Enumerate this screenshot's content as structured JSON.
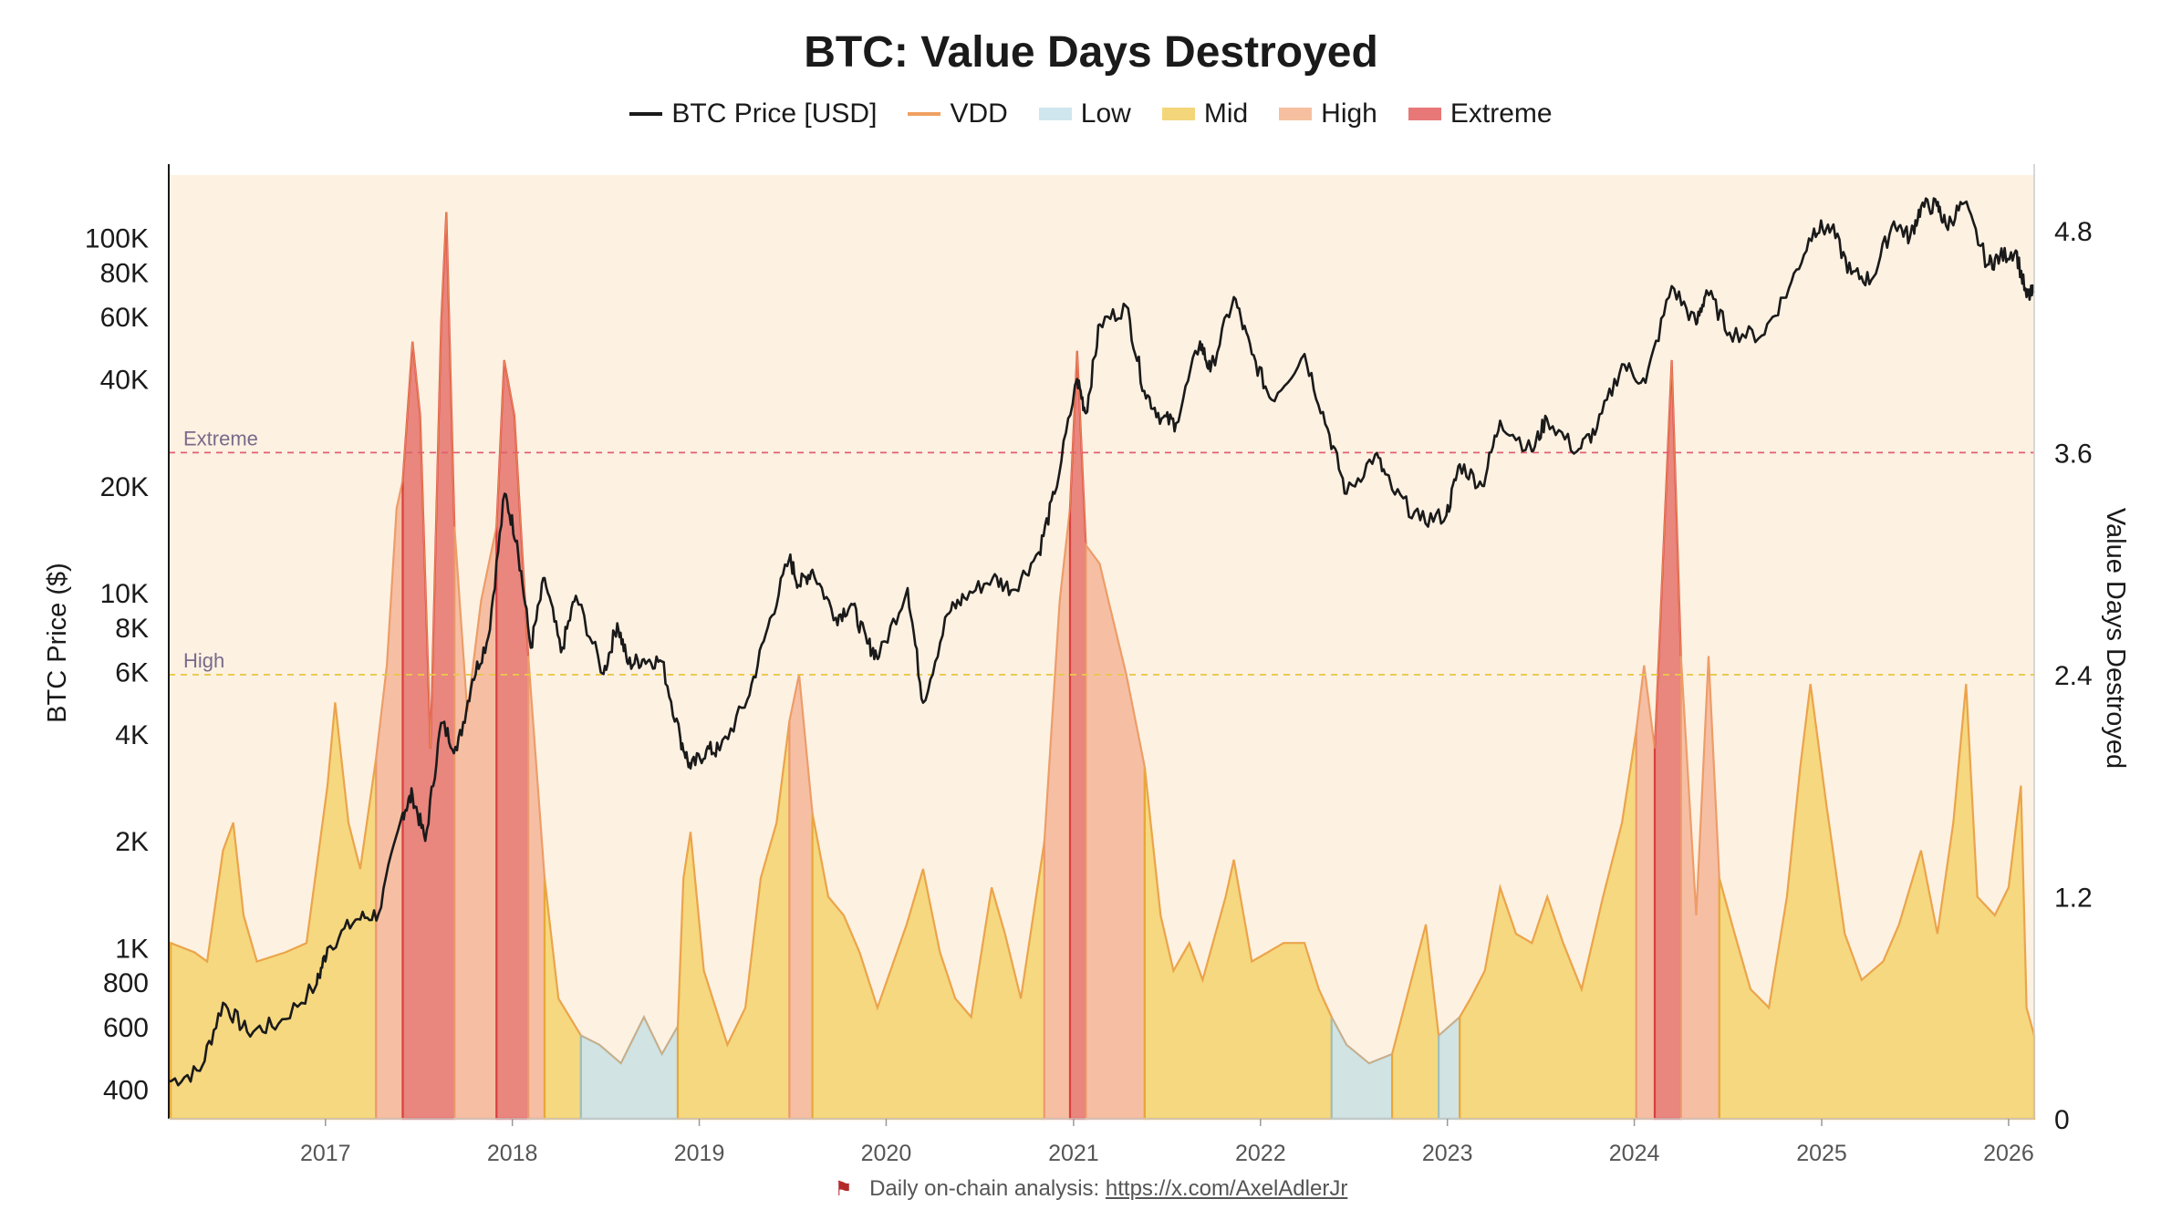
{
  "chart_data": {
    "type": "area",
    "title": "BTC: Value Days Destroyed",
    "ylabel_left": "BTC Price ($)",
    "ylabel_right": "Value Days Destroyed",
    "x_ticks": [
      "2017",
      "2018",
      "2019",
      "2020",
      "2021",
      "2022",
      "2023",
      "2024",
      "2025",
      "2026"
    ],
    "y_left_ticks": [
      "400",
      "600",
      "800",
      "1K",
      "2K",
      "4K",
      "6K",
      "8K",
      "10K",
      "20K",
      "40K",
      "60K",
      "80K",
      "100K"
    ],
    "y_left_values": [
      400,
      600,
      800,
      1000,
      2000,
      4000,
      6000,
      8000,
      10000,
      20000,
      40000,
      60000,
      80000,
      100000
    ],
    "y_left_scale": "log",
    "y_left_range": [
      330,
      150000
    ],
    "y_right_ticks": [
      "0",
      "1.2",
      "2.4",
      "3.6",
      "4.8"
    ],
    "y_right_values": [
      0,
      1.2,
      2.4,
      3.6,
      4.8
    ],
    "y_right_range": [
      0,
      5.1
    ],
    "x_range": [
      "2016-03-01",
      "2026-02-20"
    ],
    "grid": false,
    "legend_position": "top-center",
    "thresholds": [
      {
        "label": "Extreme",
        "value": 3.6,
        "color": "#e06070"
      },
      {
        "label": "High",
        "value": 2.4,
        "color": "#e8c84a"
      }
    ],
    "legend": [
      {
        "name": "BTC Price [USD]",
        "kind": "line",
        "color": "#1a1a1a"
      },
      {
        "name": "VDD",
        "kind": "line",
        "color": "#f0a060"
      },
      {
        "name": "Low",
        "kind": "area",
        "color": "#cfe6ee"
      },
      {
        "name": "Mid",
        "kind": "area",
        "color": "#f4d67a"
      },
      {
        "name": "High",
        "kind": "area",
        "color": "#f6c0a0"
      },
      {
        "name": "Extreme",
        "kind": "area",
        "color": "#e87878"
      }
    ],
    "zone_colors": {
      "low": "#cfe2e2",
      "mid": "#f4d67a",
      "high": "#f5bca0",
      "extreme": "#e88078"
    },
    "zone_edges": {
      "low": "#9fc0bc",
      "mid": "#e8a838",
      "high": "#ec9a70",
      "extreme": "#d84040"
    },
    "background": "#fdf1e2",
    "series": [
      {
        "name": "BTC Price [USD]",
        "points": [
          [
            "2016-03-01",
            420
          ],
          [
            "2016-05-01",
            450
          ],
          [
            "2016-06-15",
            700
          ],
          [
            "2016-08-01",
            580
          ],
          [
            "2016-10-01",
            610
          ],
          [
            "2016-12-15",
            790
          ],
          [
            "2017-01-05",
            1000
          ],
          [
            "2017-03-01",
            1200
          ],
          [
            "2017-04-15",
            1250
          ],
          [
            "2017-06-01",
            2400
          ],
          [
            "2017-06-20",
            2700
          ],
          [
            "2017-07-15",
            2000
          ],
          [
            "2017-08-15",
            4300
          ],
          [
            "2017-09-15",
            3600
          ],
          [
            "2017-10-15",
            5700
          ],
          [
            "2017-11-15",
            7500
          ],
          [
            "2017-12-17",
            19000
          ],
          [
            "2018-01-10",
            14000
          ],
          [
            "2018-02-06",
            7000
          ],
          [
            "2018-03-05",
            11000
          ],
          [
            "2018-04-06",
            6800
          ],
          [
            "2018-05-05",
            9800
          ],
          [
            "2018-06-28",
            5900
          ],
          [
            "2018-07-25",
            8200
          ],
          [
            "2018-08-15",
            6300
          ],
          [
            "2018-09-15",
            6500
          ],
          [
            "2018-10-20",
            6400
          ],
          [
            "2018-11-25",
            3900
          ],
          [
            "2018-12-15",
            3200
          ],
          [
            "2019-01-15",
            3600
          ],
          [
            "2019-02-10",
            3600
          ],
          [
            "2019-04-05",
            5000
          ],
          [
            "2019-05-15",
            8000
          ],
          [
            "2019-06-26",
            12500
          ],
          [
            "2019-07-15",
            10500
          ],
          [
            "2019-08-10",
            11600
          ],
          [
            "2019-09-25",
            8500
          ],
          [
            "2019-10-25",
            9300
          ],
          [
            "2019-11-25",
            7200
          ],
          [
            "2019-12-18",
            6600
          ],
          [
            "2020-02-12",
            10300
          ],
          [
            "2020-03-13",
            4900
          ],
          [
            "2020-04-30",
            8700
          ],
          [
            "2020-06-01",
            9700
          ],
          [
            "2020-07-27",
            11000
          ],
          [
            "2020-09-05",
            10200
          ],
          [
            "2020-10-25",
            13000
          ],
          [
            "2020-11-25",
            19000
          ],
          [
            "2021-01-08",
            40000
          ],
          [
            "2021-01-25",
            32000
          ],
          [
            "2021-02-21",
            57000
          ],
          [
            "2021-04-14",
            64000
          ],
          [
            "2021-05-19",
            37000
          ],
          [
            "2021-06-22",
            31000
          ],
          [
            "2021-07-20",
            30000
          ],
          [
            "2021-09-05",
            51000
          ],
          [
            "2021-09-25",
            42000
          ],
          [
            "2021-11-10",
            68000
          ],
          [
            "2021-12-15",
            47000
          ],
          [
            "2022-01-22",
            35000
          ],
          [
            "2022-03-28",
            47000
          ],
          [
            "2022-05-12",
            29000
          ],
          [
            "2022-06-18",
            19000
          ],
          [
            "2022-08-13",
            24500
          ],
          [
            "2022-09-15",
            19500
          ],
          [
            "2022-11-09",
            16000
          ],
          [
            "2022-12-30",
            16500
          ],
          [
            "2023-01-25",
            23000
          ],
          [
            "2023-03-10",
            20000
          ],
          [
            "2023-04-14",
            30500
          ],
          [
            "2023-06-15",
            25000
          ],
          [
            "2023-07-14",
            31000
          ],
          [
            "2023-09-11",
            25000
          ],
          [
            "2023-10-20",
            29000
          ],
          [
            "2023-12-08",
            44000
          ],
          [
            "2024-01-23",
            39000
          ],
          [
            "2024-03-14",
            73000
          ],
          [
            "2024-05-01",
            57000
          ],
          [
            "2024-05-21",
            71000
          ],
          [
            "2024-07-05",
            54000
          ],
          [
            "2024-09-06",
            53000
          ],
          [
            "2024-10-29",
            72000
          ],
          [
            "2024-12-17",
            106000
          ],
          [
            "2025-01-20",
            106000
          ],
          [
            "2025-02-28",
            79000
          ],
          [
            "2025-04-08",
            76000
          ],
          [
            "2025-05-22",
            111000
          ],
          [
            "2025-06-22",
            100000
          ],
          [
            "2025-07-14",
            122000
          ],
          [
            "2025-08-14",
            123000
          ],
          [
            "2025-09-01",
            108000
          ],
          [
            "2025-10-06",
            125000
          ],
          [
            "2025-11-21",
            84000
          ],
          [
            "2025-12-15",
            88000
          ],
          [
            "2026-01-15",
            92000
          ],
          [
            "2026-02-05",
            68000
          ],
          [
            "2026-02-20",
            70000
          ]
        ]
      },
      {
        "name": "VDD",
        "points": [
          [
            "2016-03-05",
            0.95
          ],
          [
            "2016-04-20",
            0.9
          ],
          [
            "2016-05-15",
            0.85
          ],
          [
            "2016-06-15",
            1.45
          ],
          [
            "2016-07-05",
            1.6
          ],
          [
            "2016-07-25",
            1.1
          ],
          [
            "2016-08-20",
            0.85
          ],
          [
            "2016-10-15",
            0.9
          ],
          [
            "2016-11-25",
            0.95
          ],
          [
            "2017-01-05",
            1.8
          ],
          [
            "2017-01-20",
            2.25
          ],
          [
            "2017-02-15",
            1.6
          ],
          [
            "2017-03-10",
            1.35
          ],
          [
            "2017-04-10",
            1.95
          ],
          [
            "2017-05-01",
            2.45
          ],
          [
            "2017-05-20",
            3.3
          ],
          [
            "2017-06-01",
            3.45
          ],
          [
            "2017-06-20",
            4.2
          ],
          [
            "2017-07-05",
            3.8
          ],
          [
            "2017-07-25",
            2.0
          ],
          [
            "2017-08-15",
            4.3
          ],
          [
            "2017-08-25",
            4.9
          ],
          [
            "2017-09-10",
            3.2
          ],
          [
            "2017-10-05",
            2.2
          ],
          [
            "2017-11-01",
            2.8
          ],
          [
            "2017-12-01",
            3.2
          ],
          [
            "2017-12-16",
            4.1
          ],
          [
            "2018-01-05",
            3.8
          ],
          [
            "2018-02-01",
            2.5
          ],
          [
            "2018-03-05",
            1.3
          ],
          [
            "2018-04-01",
            0.65
          ],
          [
            "2018-05-15",
            0.45
          ],
          [
            "2018-06-20",
            0.4
          ],
          [
            "2018-08-01",
            0.3
          ],
          [
            "2018-09-15",
            0.55
          ],
          [
            "2018-10-20",
            0.35
          ],
          [
            "2018-11-20",
            0.5
          ],
          [
            "2018-12-01",
            1.3
          ],
          [
            "2018-12-15",
            1.55
          ],
          [
            "2019-01-10",
            0.8
          ],
          [
            "2019-02-25",
            0.4
          ],
          [
            "2019-04-01",
            0.6
          ],
          [
            "2019-05-01",
            1.3
          ],
          [
            "2019-06-01",
            1.6
          ],
          [
            "2019-06-26",
            2.15
          ],
          [
            "2019-07-15",
            2.4
          ],
          [
            "2019-08-10",
            1.65
          ],
          [
            "2019-09-10",
            1.2
          ],
          [
            "2019-10-10",
            1.1
          ],
          [
            "2019-11-10",
            0.9
          ],
          [
            "2019-12-15",
            0.6
          ],
          [
            "2020-02-10",
            1.05
          ],
          [
            "2020-03-13",
            1.35
          ],
          [
            "2020-04-15",
            0.9
          ],
          [
            "2020-05-15",
            0.65
          ],
          [
            "2020-06-15",
            0.55
          ],
          [
            "2020-07-25",
            1.25
          ],
          [
            "2020-08-20",
            1.0
          ],
          [
            "2020-09-20",
            0.65
          ],
          [
            "2020-11-05",
            1.5
          ],
          [
            "2020-12-05",
            2.8
          ],
          [
            "2020-12-25",
            3.3
          ],
          [
            "2021-01-08",
            4.15
          ],
          [
            "2021-01-25",
            3.1
          ],
          [
            "2021-02-21",
            3.0
          ],
          [
            "2021-03-10",
            2.8
          ],
          [
            "2021-04-14",
            2.4
          ],
          [
            "2021-05-20",
            1.9
          ],
          [
            "2021-06-20",
            1.1
          ],
          [
            "2021-07-15",
            0.8
          ],
          [
            "2021-08-15",
            0.95
          ],
          [
            "2021-09-10",
            0.75
          ],
          [
            "2021-10-25",
            1.2
          ],
          [
            "2021-11-10",
            1.4
          ],
          [
            "2021-12-15",
            0.85
          ],
          [
            "2022-01-15",
            0.9
          ],
          [
            "2022-02-15",
            0.95
          ],
          [
            "2022-03-28",
            0.95
          ],
          [
            "2022-04-25",
            0.7
          ],
          [
            "2022-05-20",
            0.55
          ],
          [
            "2022-06-18",
            0.4
          ],
          [
            "2022-08-01",
            0.3
          ],
          [
            "2022-09-15",
            0.35
          ],
          [
            "2022-11-01",
            0.85
          ],
          [
            "2022-11-20",
            1.05
          ],
          [
            "2022-12-15",
            0.45
          ],
          [
            "2023-01-25",
            0.55
          ],
          [
            "2023-02-15",
            0.65
          ],
          [
            "2023-03-15",
            0.8
          ],
          [
            "2023-04-14",
            1.25
          ],
          [
            "2023-05-15",
            1.0
          ],
          [
            "2023-06-15",
            0.95
          ],
          [
            "2023-07-15",
            1.2
          ],
          [
            "2023-08-15",
            0.95
          ],
          [
            "2023-09-20",
            0.7
          ],
          [
            "2023-11-01",
            1.2
          ],
          [
            "2023-12-08",
            1.6
          ],
          [
            "2024-01-05",
            2.1
          ],
          [
            "2024-01-20",
            2.45
          ],
          [
            "2024-02-10",
            2.0
          ],
          [
            "2024-03-14",
            4.1
          ],
          [
            "2024-04-01",
            2.5
          ],
          [
            "2024-05-01",
            1.1
          ],
          [
            "2024-05-25",
            2.5
          ],
          [
            "2024-06-15",
            1.3
          ],
          [
            "2024-07-15",
            1.0
          ],
          [
            "2024-08-15",
            0.7
          ],
          [
            "2024-09-20",
            0.6
          ],
          [
            "2024-10-25",
            1.2
          ],
          [
            "2024-11-20",
            1.9
          ],
          [
            "2024-12-10",
            2.35
          ],
          [
            "2025-01-10",
            1.7
          ],
          [
            "2025-02-15",
            1.0
          ],
          [
            "2025-03-20",
            0.75
          ],
          [
            "2025-05-01",
            0.85
          ],
          [
            "2025-06-01",
            1.05
          ],
          [
            "2025-07-14",
            1.45
          ],
          [
            "2025-08-15",
            1.0
          ],
          [
            "2025-09-15",
            1.6
          ],
          [
            "2025-10-10",
            2.35
          ],
          [
            "2025-11-01",
            1.2
          ],
          [
            "2025-12-05",
            1.1
          ],
          [
            "2026-01-01",
            1.25
          ],
          [
            "2026-01-25",
            1.8
          ],
          [
            "2026-02-05",
            0.6
          ],
          [
            "2026-02-20",
            0.45
          ]
        ]
      }
    ]
  },
  "footer": {
    "text": "Daily on-chain analysis:",
    "link": "https://x.com/AxelAdlerJr"
  }
}
